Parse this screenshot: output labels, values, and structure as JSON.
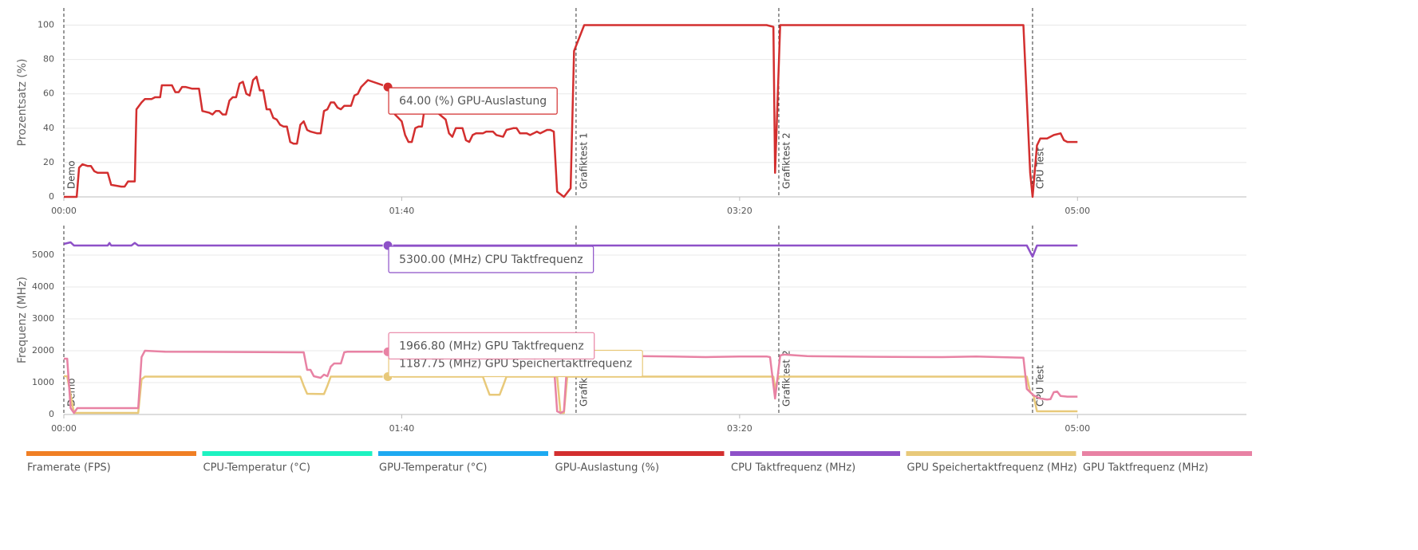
{
  "chart_data": [
    {
      "type": "line",
      "ylabel": "Prozentsatz (%)",
      "xlim": [
        0,
        350
      ],
      "xticks": [
        {
          "value": 0,
          "label": "00:00"
        },
        {
          "value": 100,
          "label": "01:40"
        },
        {
          "value": 200,
          "label": "03:20"
        },
        {
          "value": 300,
          "label": "05:00"
        }
      ],
      "ylim": [
        0,
        110
      ],
      "yticks": [
        0,
        20,
        40,
        60,
        80,
        100
      ],
      "grid": true,
      "series": [
        {
          "name": "Framerate (FPS)",
          "color": "#f07f24",
          "x": [],
          "values": []
        },
        {
          "name": "CPU-Temperatur (°C)",
          "color": "#1df2c1",
          "x": [],
          "values": []
        },
        {
          "name": "GPU-Temperatur (°C)",
          "color": "#1eaaf1",
          "x": [],
          "values": []
        },
        {
          "name": "GPU-Auslastung (%)",
          "color": "#d32f2f",
          "x": [
            0,
            3.8,
            4.5,
            5.5,
            7,
            8,
            9,
            10,
            13,
            14,
            17,
            18,
            19,
            21,
            21.5,
            23,
            24,
            26,
            27,
            28.5,
            29,
            32,
            33,
            34,
            35,
            36,
            38,
            40,
            41,
            43,
            44,
            45,
            46,
            47,
            48,
            49,
            50,
            51,
            52,
            53,
            54,
            55,
            56,
            57,
            58,
            59,
            60,
            61,
            62,
            63,
            64,
            65,
            66,
            67,
            68,
            69,
            70,
            71,
            72,
            73,
            75,
            76,
            77,
            78,
            79,
            80,
            81,
            82,
            83,
            85,
            86,
            87,
            88,
            89,
            90,
            95.9,
            97,
            98,
            99,
            100,
            101,
            102,
            103,
            104,
            105,
            106,
            107,
            110,
            113,
            114,
            115,
            116,
            118,
            119,
            120,
            121,
            122,
            124,
            125,
            127,
            128,
            130,
            131,
            133,
            134,
            135,
            137,
            138,
            139,
            140,
            141,
            142,
            143,
            144,
            145,
            146,
            148,
            150,
            151,
            154,
            208,
            210,
            210.5,
            212,
            284,
            286,
            286.7,
            288,
            289,
            291,
            293,
            295,
            296,
            297,
            300
          ],
          "values": [
            0,
            0,
            17,
            19,
            18,
            18,
            15,
            14,
            14,
            7,
            6,
            6,
            9,
            9,
            51,
            55,
            57,
            57,
            58,
            58,
            65,
            65,
            61,
            61,
            64,
            64,
            63,
            63,
            50,
            49,
            48,
            50,
            50,
            48,
            48,
            56,
            58,
            58,
            66,
            67,
            60,
            59,
            68,
            70,
            62,
            62,
            51,
            51,
            46,
            45,
            42,
            41,
            41,
            32,
            31,
            31,
            42,
            44,
            39,
            38,
            37,
            37,
            50,
            51,
            55,
            55,
            52,
            51,
            53,
            53,
            59,
            60,
            64,
            66,
            68,
            64,
            58,
            48,
            46,
            44,
            36,
            32,
            32,
            40,
            41,
            41,
            55,
            50,
            45,
            37,
            35,
            40,
            40,
            33,
            32,
            36,
            37,
            37,
            38,
            38,
            36,
            35,
            39,
            40,
            40,
            37,
            37,
            36,
            37,
            38,
            37,
            38,
            39,
            39,
            38,
            3,
            0,
            5,
            85,
            100,
            100,
            99,
            14,
            100,
            100,
            14,
            0,
            30,
            34,
            34,
            36,
            37,
            33,
            32,
            32
          ],
          "tooltip": {
            "x": 95.9,
            "value": 64,
            "label": "64.00 (%) GPU-Auslastung"
          }
        }
      ]
    },
    {
      "type": "line",
      "ylabel": "Frequenz (MHz)",
      "xlim": [
        0,
        350
      ],
      "xticks": [
        {
          "value": 0,
          "label": "00:00"
        },
        {
          "value": 100,
          "label": "01:40"
        },
        {
          "value": 200,
          "label": "03:20"
        },
        {
          "value": 300,
          "label": "05:00"
        }
      ],
      "ylim": [
        0,
        5925
      ],
      "yticks": [
        0,
        1000,
        2000,
        3000,
        4000,
        5000
      ],
      "grid": true,
      "series": [
        {
          "name": "CPU Taktfrequenz (MHz)",
          "color": "#8e51c8",
          "x": [
            0,
            2,
            3,
            13,
            13.5,
            14,
            20,
            21,
            22,
            285,
            286.7,
            288,
            300
          ],
          "values": [
            5350,
            5400,
            5300,
            5300,
            5380,
            5300,
            5300,
            5380,
            5300,
            5300,
            4950,
            5300,
            5300
          ],
          "tooltip": {
            "x": 95.9,
            "value": 5300,
            "label": "5300.00 (MHz) CPU Taktfrequenz"
          }
        },
        {
          "name": "GPU Speichertaktfrequenz (MHz)",
          "color": "#e8c97a",
          "x": [
            0,
            1,
            3,
            22,
            23,
            24,
            70,
            71,
            72,
            77,
            78,
            79,
            124,
            125,
            126,
            129,
            130,
            131,
            146,
            147,
            148,
            149,
            210,
            210.5,
            211.5,
            285,
            286,
            287,
            288,
            300
          ],
          "values": [
            1200,
            1200,
            50,
            50,
            1100,
            1188,
            1188,
            900,
            650,
            640,
            900,
            1188,
            1188,
            900,
            620,
            620,
            900,
            1188,
            1188,
            50,
            50,
            1188,
            1188,
            800,
            1188,
            1188,
            700,
            600,
            100,
            100
          ],
          "tooltip": {
            "x": 95.9,
            "value": 1187.75,
            "label": "1187.75 (MHz) GPU Speichertaktfrequenz"
          }
        },
        {
          "name": "GPU Taktfrequenz (MHz)",
          "color": "#e882a4",
          "x": [
            0,
            1,
            2,
            3,
            4,
            22,
            23,
            24,
            30,
            70,
            71,
            72,
            73,
            74,
            76,
            77,
            78,
            79,
            80,
            82,
            83,
            84,
            90,
            95.9,
            100,
            120,
            140,
            144,
            145,
            146,
            147,
            148,
            149,
            150,
            160,
            170,
            180,
            190,
            200,
            208,
            209,
            210.5,
            212,
            213,
            220,
            240,
            260,
            270,
            284,
            285,
            287,
            289,
            291,
            292,
            293,
            294,
            295,
            297,
            300
          ],
          "values": [
            1750,
            1750,
            200,
            50,
            200,
            200,
            1800,
            2000,
            1970,
            1950,
            1950,
            1400,
            1400,
            1200,
            1150,
            1250,
            1200,
            1500,
            1600,
            1600,
            1950,
            1970,
            1970,
            1966.8,
            1960,
            1950,
            1850,
            1800,
            1600,
            100,
            50,
            100,
            1700,
            1850,
            1830,
            1830,
            1820,
            1800,
            1820,
            1820,
            1800,
            500,
            1850,
            1880,
            1830,
            1810,
            1800,
            1820,
            1780,
            800,
            600,
            500,
            470,
            480,
            700,
            720,
            580,
            560,
            560
          ],
          "tooltip": {
            "x": 95.9,
            "value": 1966.8,
            "label": "1966.80 (MHz) GPU Taktfrequenz"
          }
        }
      ]
    }
  ],
  "annotations": [
    {
      "x": 0,
      "label": "Demo"
    },
    {
      "x": 151.6,
      "label": "Grafiktest 1"
    },
    {
      "x": 211.6,
      "label": "Grafiktest 2"
    },
    {
      "x": 286.7,
      "label": "CPU Test"
    }
  ]
}
